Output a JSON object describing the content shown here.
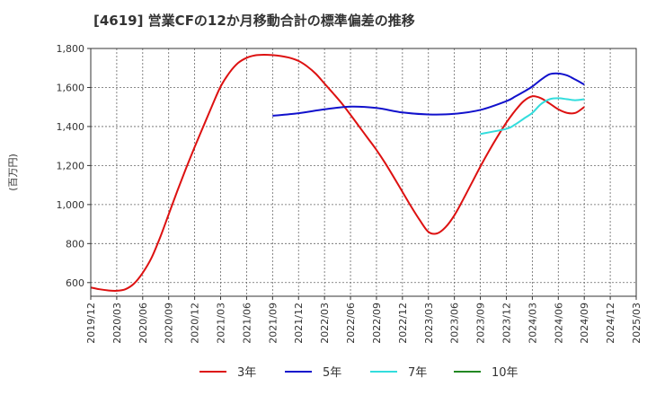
{
  "chart_data": {
    "type": "line",
    "title": "[4619]  営業CFの12か月移動合計の標準偏差の推移",
    "ylabel": "(百万円)",
    "xlabel": "",
    "ylim": [
      530,
      1800
    ],
    "y_ticks": [
      600,
      800,
      1000,
      1200,
      1400,
      1600,
      1800
    ],
    "y_tick_labels": [
      "600",
      "800",
      "1,000",
      "1,200",
      "1,400",
      "1,600",
      "1,800"
    ],
    "x_ticks": [
      "2019/12",
      "2020/03",
      "2020/06",
      "2020/09",
      "2020/12",
      "2021/03",
      "2021/06",
      "2021/09",
      "2021/12",
      "2022/03",
      "2022/06",
      "2022/09",
      "2022/12",
      "2023/03",
      "2023/06",
      "2023/09",
      "2023/12",
      "2024/03",
      "2024/06",
      "2024/09",
      "2024/12",
      "2025/03"
    ],
    "grid": true,
    "legend_position": "bottom",
    "series": [
      {
        "name": "3年",
        "color": "#dd1111",
        "x": [
          "2019/12",
          "2020/01",
          "2020/02",
          "2020/03",
          "2020/04",
          "2020/05",
          "2020/06",
          "2020/07",
          "2020/08",
          "2020/09",
          "2020/10",
          "2020/11",
          "2020/12",
          "2021/01",
          "2021/02",
          "2021/03",
          "2021/04",
          "2021/05",
          "2021/06",
          "2021/07",
          "2021/08",
          "2021/09",
          "2021/10",
          "2021/11",
          "2021/12",
          "2022/01",
          "2022/02",
          "2022/03",
          "2022/04",
          "2022/05",
          "2022/06",
          "2022/07",
          "2022/08",
          "2022/09",
          "2022/10",
          "2022/11",
          "2022/12",
          "2023/01",
          "2023/02",
          "2023/03",
          "2023/04",
          "2023/05",
          "2023/06",
          "2023/07",
          "2023/08",
          "2023/09",
          "2023/10",
          "2023/11",
          "2023/12",
          "2024/01",
          "2024/02",
          "2024/03",
          "2024/04",
          "2024/05",
          "2024/06",
          "2024/07",
          "2024/08",
          "2024/09"
        ],
        "values": [
          575,
          566,
          560,
          558,
          566,
          595,
          650,
          725,
          830,
          950,
          1070,
          1185,
          1295,
          1400,
          1505,
          1605,
          1675,
          1725,
          1752,
          1765,
          1768,
          1766,
          1761,
          1752,
          1736,
          1708,
          1670,
          1620,
          1570,
          1518,
          1460,
          1400,
          1340,
          1280,
          1213,
          1140,
          1065,
          990,
          920,
          860,
          852,
          885,
          945,
          1025,
          1110,
          1195,
          1275,
          1350,
          1420,
          1480,
          1530,
          1555,
          1545,
          1518,
          1488,
          1470,
          1470,
          1500
        ]
      },
      {
        "name": "5年",
        "color": "#1111cc",
        "x": [
          "2021/09",
          "2021/12",
          "2022/03",
          "2022/06",
          "2022/09",
          "2022/12",
          "2023/03",
          "2023/06",
          "2023/09",
          "2023/12",
          "2024/01",
          "2024/02",
          "2024/03",
          "2024/04",
          "2024/05",
          "2024/06",
          "2024/07",
          "2024/08",
          "2024/09"
        ],
        "values": [
          1455,
          1468,
          1488,
          1502,
          1495,
          1472,
          1462,
          1465,
          1485,
          1530,
          1553,
          1578,
          1605,
          1640,
          1668,
          1672,
          1662,
          1640,
          1615
        ]
      },
      {
        "name": "7年",
        "color": "#33dddd",
        "x": [
          "2023/09",
          "2023/12",
          "2024/01",
          "2024/02",
          "2024/03",
          "2024/04",
          "2024/05",
          "2024/06",
          "2024/07",
          "2024/08",
          "2024/09"
        ],
        "values": [
          1362,
          1388,
          1410,
          1440,
          1470,
          1515,
          1540,
          1545,
          1540,
          1535,
          1540
        ]
      },
      {
        "name": "10年",
        "color": "#228822",
        "x": [],
        "values": []
      }
    ]
  }
}
